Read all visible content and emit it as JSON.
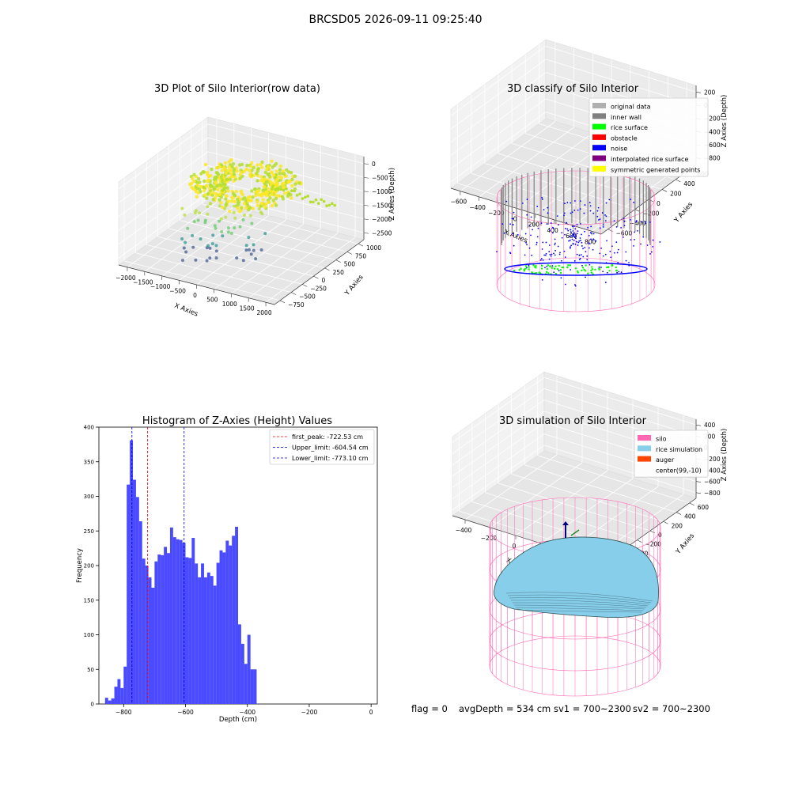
{
  "figure_title": "BRCSD05 2026-09-11 09:25:40",
  "status_bar": {
    "flag": "flag = 0",
    "avg_depth": "avgDepth = 534 cm",
    "sv1": "sv1 = 700~2300",
    "sv2": "sv2 = 700~2300"
  },
  "colors": {
    "hist_bar": "#4a4aff",
    "first_peak_line": "#ff0000",
    "limit_line": "#0000cc",
    "silo": "#ff69b4",
    "rice_simulation": "#87ceeb",
    "auger": "#ff4500",
    "original_data": "#b0b0b0",
    "inner_wall": "#808080",
    "rice_surface": "#00ff00",
    "obstacle": "#ff0000",
    "noise": "#0000ff",
    "interpolated_rice_surface": "#800080",
    "symmetric_generated_points": "#ffff00"
  },
  "chart_data": [
    {
      "type": "scatter",
      "subtype": "3d",
      "title": "3D Plot of Silo Interior(row data)",
      "xlabel": "X Axies",
      "ylabel": "Y Axies",
      "zlabel": "Z Axies (Depth)",
      "x_ticks": [
        "−2000",
        "−1500",
        "−1000",
        "−500",
        "0",
        "500",
        "1000",
        "1500",
        "2000"
      ],
      "y_ticks": [
        "−750",
        "−500",
        "−250",
        "0",
        "250",
        "500",
        "750",
        "1000"
      ],
      "z_ticks": [
        "0",
        "−500",
        "−1000",
        "−1500",
        "−2000",
        "−2500"
      ],
      "xlim": [
        -2000,
        2000
      ],
      "ylim": [
        -750,
        1000
      ],
      "zlim": [
        -2500,
        0
      ],
      "colormap": "viridis",
      "grid": true
    },
    {
      "type": "scatter",
      "subtype": "3d",
      "title": "3D classify of Silo Interior",
      "xlabel": "X Axies",
      "ylabel": "Y Axies",
      "zlabel": "Z Axies (Depth)",
      "x_ticks": [
        "−600",
        "−400",
        "−200",
        "0",
        "200",
        "400",
        "600",
        "800"
      ],
      "y_ticks": [
        "−600",
        "−400",
        "−200",
        "0",
        "200",
        "400",
        "600"
      ],
      "z_ticks": [
        "200",
        "0",
        "−200",
        "−400",
        "−600",
        "−800"
      ],
      "xlim": [
        -600,
        800
      ],
      "ylim": [
        -600,
        600
      ],
      "zlim": [
        -800,
        200
      ],
      "legend": [
        "original data",
        "inner wall",
        "rice surface",
        "obstacle",
        "noise",
        "interpolated rice surface",
        "symmetric generated points"
      ],
      "legend_position": "top-right",
      "grid": true
    },
    {
      "type": "bar",
      "subtype": "histogram",
      "title": "Histogram of Z-Axies (Height) Values",
      "xlabel": "Depth (cm)",
      "ylabel": "Frequency",
      "xlim": [
        -880,
        20
      ],
      "ylim": [
        0,
        400
      ],
      "x_ticks": [
        -800,
        -600,
        -400,
        -200,
        0
      ],
      "x_tick_labels": [
        "−800",
        "−600",
        "−400",
        "−200",
        "0"
      ],
      "y_ticks": [
        0,
        50,
        100,
        150,
        200,
        250,
        300,
        350,
        400
      ],
      "bin_start": -860,
      "bin_width": 10,
      "values": [
        9,
        5,
        8,
        25,
        36,
        23,
        54,
        317,
        381,
        324,
        299,
        264,
        210,
        200,
        183,
        168,
        206,
        216,
        215,
        227,
        218,
        255,
        241,
        238,
        237,
        233,
        212,
        211,
        240,
        203,
        183,
        203,
        183,
        190,
        185,
        171,
        204,
        222,
        219,
        236,
        229,
        243,
        256,
        115,
        87,
        58,
        100,
        50,
        50
      ],
      "reference_lines": [
        {
          "name": "first_peak",
          "value": -722.53,
          "label": "first_peak: -722.53 cm",
          "style": "red-dashed"
        },
        {
          "name": "Upper_limit",
          "value": -604.54,
          "label": "Upper_limit: -604.54 cm",
          "style": "blue-dashed"
        },
        {
          "name": "Lower_limit",
          "value": -773.1,
          "label": "Lower_limit: -773.10 cm",
          "style": "blue-dashed"
        }
      ],
      "legend_position": "top-right",
      "grid": false
    },
    {
      "type": "scatter",
      "subtype": "3d-surface",
      "title": "3D simulation of Silo Interior",
      "xlabel": "X Axies",
      "ylabel": "Y Axies",
      "zlabel": "Z Axies (Depth)",
      "x_ticks": [
        "−400",
        "−200",
        "0",
        "200",
        "400",
        "600"
      ],
      "y_ticks": [
        "−600",
        "−400",
        "−200",
        "0",
        "200",
        "400",
        "600"
      ],
      "z_ticks": [
        "400",
        "200",
        "0",
        "−200",
        "−400",
        "−600",
        "−800"
      ],
      "xlim": [
        -400,
        600
      ],
      "ylim": [
        -600,
        600
      ],
      "zlim": [
        -800,
        400
      ],
      "legend": [
        "silo",
        "rice simulation",
        "auger",
        "center(99,-10)"
      ],
      "legend_position": "top-right",
      "grid": true
    }
  ]
}
